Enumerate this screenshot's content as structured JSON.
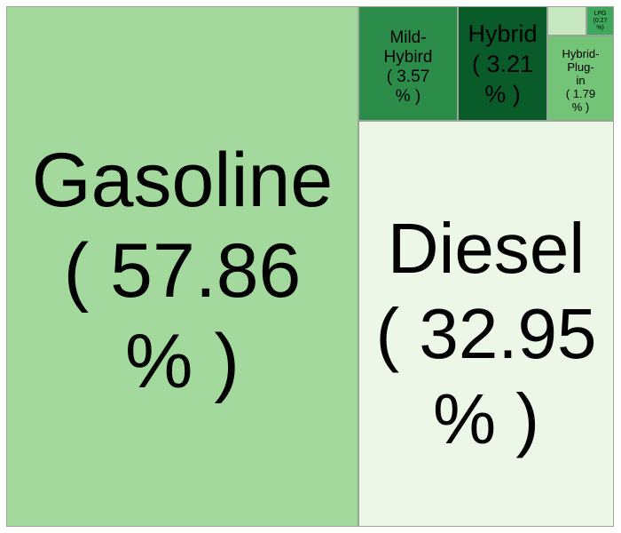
{
  "chart_data": {
    "type": "treemap",
    "title": "",
    "items": [
      {
        "name": "Gasoline",
        "value": 57.86,
        "label": [
          "Gasoline",
          "( 57.86",
          "% )"
        ],
        "color": "#a3d99d"
      },
      {
        "name": "Diesel",
        "value": 32.95,
        "label": [
          "Diesel",
          "( 32.95",
          "% )"
        ],
        "color": "#edf7e8"
      },
      {
        "name": "Mild-Hybird",
        "value": 3.57,
        "label": [
          "Mild-",
          "Hybird",
          "( 3.57",
          "% )"
        ],
        "color": "#2b8c4a"
      },
      {
        "name": "Hybrid",
        "value": 3.21,
        "label": [
          "Hybrid",
          "( 3.21",
          "% )"
        ],
        "color": "#095b29"
      },
      {
        "name": "Hybrid-Plug-in",
        "value": 1.79,
        "label": [
          "Hybrid-",
          "Plug-",
          "in",
          "( 1.79",
          "% )"
        ],
        "color": "#73c476"
      },
      {
        "name": "LPG",
        "value": 0.27,
        "label": [
          "LPG",
          "(0.27",
          "%)"
        ],
        "color": "#3ea85c"
      },
      {
        "name": "",
        "value": null,
        "label": [],
        "color": "#c8e8c2"
      }
    ]
  }
}
